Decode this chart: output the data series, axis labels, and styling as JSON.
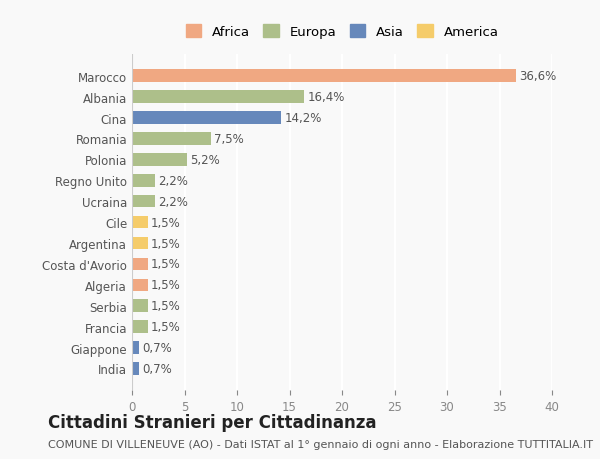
{
  "categories": [
    "Marocco",
    "Albania",
    "Cina",
    "Romania",
    "Polonia",
    "Regno Unito",
    "Ucraina",
    "Cile",
    "Argentina",
    "Costa d'Avorio",
    "Algeria",
    "Serbia",
    "Francia",
    "Giappone",
    "India"
  ],
  "values": [
    36.6,
    16.4,
    14.2,
    7.5,
    5.2,
    2.2,
    2.2,
    1.5,
    1.5,
    1.5,
    1.5,
    1.5,
    1.5,
    0.7,
    0.7
  ],
  "labels": [
    "36,6%",
    "16,4%",
    "14,2%",
    "7,5%",
    "5,2%",
    "2,2%",
    "2,2%",
    "1,5%",
    "1,5%",
    "1,5%",
    "1,5%",
    "1,5%",
    "1,5%",
    "0,7%",
    "0,7%"
  ],
  "continents": [
    "Africa",
    "Europa",
    "Asia",
    "Europa",
    "Europa",
    "Europa",
    "Europa",
    "America",
    "America",
    "Africa",
    "Africa",
    "Europa",
    "Europa",
    "Asia",
    "Asia"
  ],
  "continent_colors": {
    "Africa": "#F0A882",
    "Europa": "#ADBF8A",
    "Asia": "#6688BB",
    "America": "#F5CC6A"
  },
  "legend_order": [
    "Africa",
    "Europa",
    "Asia",
    "America"
  ],
  "xlim": [
    0,
    40
  ],
  "xticks": [
    0,
    5,
    10,
    15,
    20,
    25,
    30,
    35,
    40
  ],
  "title": "Cittadini Stranieri per Cittadinanza",
  "subtitle": "COMUNE DI VILLENEUVE (AO) - Dati ISTAT al 1° gennaio di ogni anno - Elaborazione TUTTITALIA.IT",
  "background_color": "#f9f9f9",
  "grid_color": "#ffffff",
  "bar_height": 0.6,
  "label_fontsize": 8.5,
  "tick_fontsize": 8.5,
  "title_fontsize": 12,
  "subtitle_fontsize": 8
}
